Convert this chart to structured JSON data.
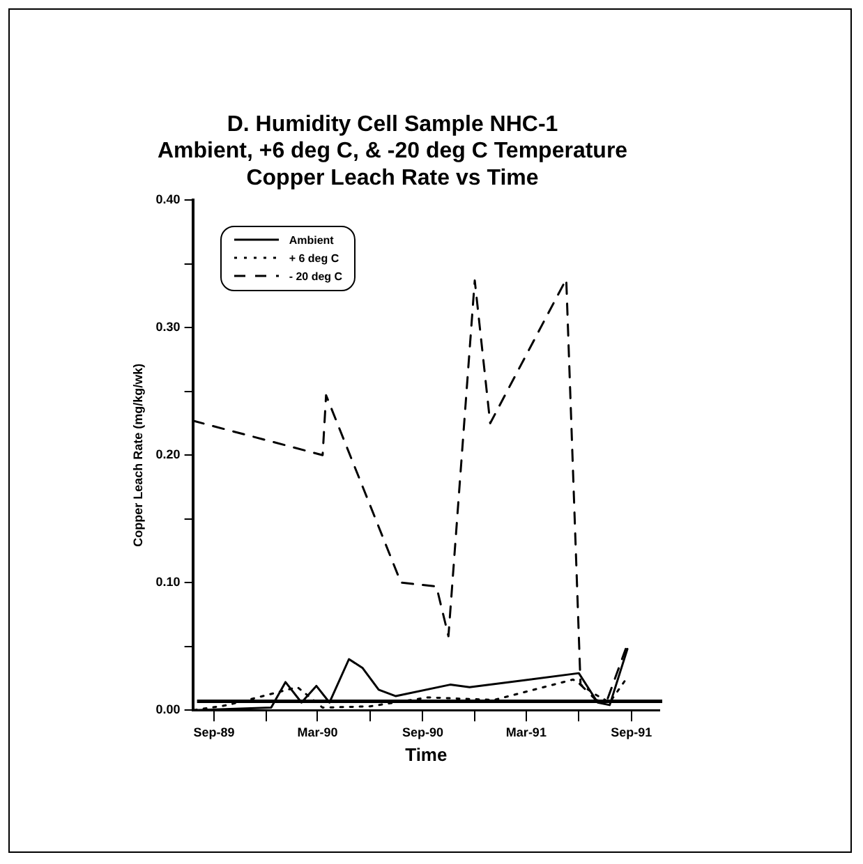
{
  "chart_data": {
    "type": "line",
    "title": "D. Humidity Cell Sample NHC-1\nAmbient, +6 deg C, & -20 deg C Temperature\nCopper Leach Rate vs Time",
    "xlabel": "Time",
    "ylabel": "Copper Leach Rate (mg/kg/wk)",
    "series": [
      {
        "name": "Ambient",
        "color": "#000000",
        "line_style": "solid",
        "x": [
          "1989-07-28",
          "1989-12-10",
          "1990-01-04",
          "1990-02-01",
          "1990-02-27",
          "1990-03-22",
          "1990-04-25",
          "1990-05-19",
          "1990-06-16",
          "1990-07-16",
          "1990-10-19",
          "1990-11-22",
          "1991-06-01",
          "1991-07-04",
          "1991-07-25",
          "1991-08-25"
        ],
        "values": [
          0,
          0.002,
          0.022,
          0.006,
          0.019,
          0.006,
          0.04,
          0.033,
          0.016,
          0.011,
          0.02,
          0.018,
          0.029,
          0.006,
          0.004,
          0.048
        ]
      },
      {
        "name": "+ 6 deg C",
        "color": "#000000",
        "line_style": "dotted",
        "x": [
          "1989-07-28",
          "1989-09-25",
          "1990-01-25",
          "1990-03-10",
          "1990-06-01",
          "1990-09-10",
          "1991-01-04",
          "1991-05-22",
          "1991-07-01",
          "1991-07-25",
          "1991-08-22"
        ],
        "values": [
          0,
          0.004,
          0.018,
          0.002,
          0.003,
          0.01,
          0.008,
          0.024,
          0.012,
          0.006,
          0.024
        ]
      },
      {
        "name": "- 20 deg C",
        "color": "#000000",
        "line_style": "dashed",
        "x": [
          "1989-07-26",
          "1990-03-10",
          "1990-03-16",
          "1990-07-25",
          "1990-09-25",
          "1990-10-16",
          "1990-12-01",
          "1990-12-28",
          "1991-05-10",
          "1991-06-04",
          "1991-07-01",
          "1991-07-19",
          "1991-08-22"
        ],
        "values": [
          0.227,
          0.2,
          0.247,
          0.1,
          0.097,
          0.058,
          0.337,
          0.225,
          0.338,
          0.02,
          0.008,
          0.006,
          0.048
        ]
      }
    ],
    "xlim": [
      "1989-07-26",
      "1991-10-20"
    ],
    "xticks": [
      {
        "value": "1989-09-01",
        "label": "Sep-89"
      },
      {
        "value": "1989-12-01",
        "label": null
      },
      {
        "value": "1990-03-01",
        "label": "Mar-90"
      },
      {
        "value": "1990-06-01",
        "label": null
      },
      {
        "value": "1990-09-01",
        "label": "Sep-90"
      },
      {
        "value": "1990-12-01",
        "label": null
      },
      {
        "value": "1991-03-01",
        "label": "Mar-91"
      },
      {
        "value": "1991-06-01",
        "label": null
      },
      {
        "value": "1991-09-01",
        "label": "Sep-91"
      }
    ],
    "ylim": [
      0,
      0.4
    ],
    "yticks": [
      {
        "value": 0,
        "label": "0.00"
      },
      {
        "value": 0.05,
        "label": null
      },
      {
        "value": 0.1,
        "label": "0.10"
      },
      {
        "value": 0.15,
        "label": null
      },
      {
        "value": 0.2,
        "label": "0.20"
      },
      {
        "value": 0.25,
        "label": null
      },
      {
        "value": 0.3,
        "label": "0.30"
      },
      {
        "value": 0.35,
        "label": null
      },
      {
        "value": 0.4,
        "label": "0.40"
      }
    ],
    "ref_lines": [
      {
        "axis": "y",
        "value": 0.007,
        "color": "#000000"
      }
    ],
    "grid": false,
    "legend": "top left",
    "marker": "none"
  }
}
